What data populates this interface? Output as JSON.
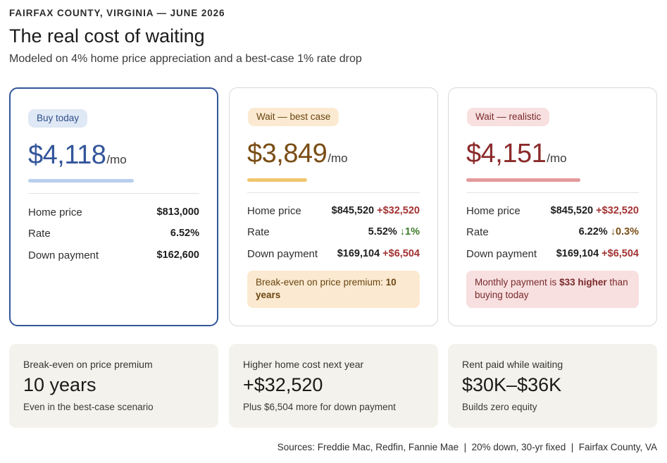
{
  "header": {
    "eyebrow": "FAIRFAX COUNTY, VIRGINIA — JUNE 2026",
    "title": "The real cost of waiting",
    "subtitle": "Modeled on 4% home price appreciation and a best-case 1% rate drop"
  },
  "cards": {
    "buy": {
      "pill": "Buy today",
      "price": "$4,118",
      "unit": "/mo",
      "home_price_label": "Home price",
      "home_price": "$813,000",
      "rate_label": "Rate",
      "rate": "6.52%",
      "down_label": "Down payment",
      "down": "$162,600"
    },
    "best": {
      "pill": "Wait — best case",
      "price": "$3,849",
      "unit": "/mo",
      "home_price_label": "Home price",
      "home_price": "$845,520",
      "home_price_delta": "+$32,520",
      "rate_label": "Rate",
      "rate": "5.52%",
      "rate_delta": "↓1%",
      "down_label": "Down payment",
      "down": "$169,104",
      "down_delta": "+$6,504",
      "note_text": "Break-even on price premium: ",
      "note_bold": "10 years"
    },
    "realistic": {
      "pill": "Wait — realistic",
      "price": "$4,151",
      "unit": "/mo",
      "home_price_label": "Home price",
      "home_price": "$845,520",
      "home_price_delta": "+$32,520",
      "rate_label": "Rate",
      "rate": "6.22%",
      "rate_delta": "↓0.3%",
      "down_label": "Down payment",
      "down": "$169,104",
      "down_delta": "+$6,504",
      "note_pre": "Monthly payment is ",
      "note_bold": "$33 higher",
      "note_post": " than buying today"
    }
  },
  "stats": [
    {
      "label": "Break-even on price premium",
      "value": "10 years",
      "sub": "Even in the best-case scenario"
    },
    {
      "label": "Higher home cost next year",
      "value": "+$32,520",
      "sub": "Plus $6,504 more for down payment"
    },
    {
      "label": "Rent paid while waiting",
      "value": "$30K–$36K",
      "sub": "Builds zero equity"
    }
  ],
  "footer": {
    "sources": "Sources: Freddie Mac, Redfin, Fannie Mae  |  20% down, 30-yr fixed  |  Fairfax County, VA"
  },
  "colors": {
    "buy_accent": "#33569a",
    "best_accent": "#7a4d14",
    "realistic_accent": "#8b2a2a",
    "increase": "#a33232",
    "decrease": "#3e7a2a"
  }
}
